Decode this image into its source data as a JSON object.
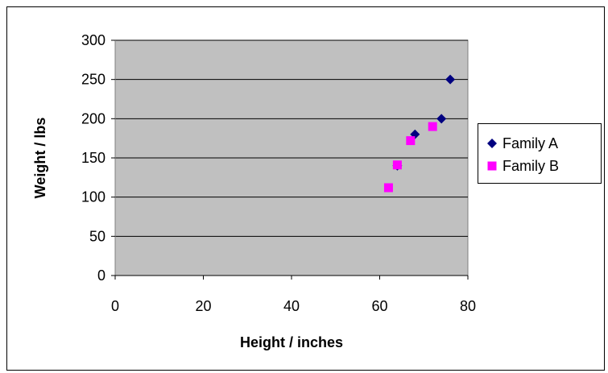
{
  "chart_data": {
    "type": "scatter",
    "xlabel": "Height / inches",
    "ylabel": "Weight / lbs",
    "xlim": [
      0,
      80
    ],
    "ylim": [
      0,
      300
    ],
    "x_ticks": [
      "0",
      "20",
      "40",
      "60",
      "80"
    ],
    "y_ticks": [
      "0",
      "50",
      "100",
      "150",
      "200",
      "250",
      "300"
    ],
    "grid": "horizontal",
    "legend_position": "right",
    "plot_background": "#c0c0c0",
    "series": [
      {
        "name": "Family A",
        "marker": "diamond",
        "color": "#000080",
        "points": [
          {
            "x": 64,
            "y": 140
          },
          {
            "x": 68,
            "y": 180
          },
          {
            "x": 74,
            "y": 200
          },
          {
            "x": 76,
            "y": 250
          }
        ]
      },
      {
        "name": "Family B",
        "marker": "square",
        "color": "#ff00ff",
        "points": [
          {
            "x": 62,
            "y": 112
          },
          {
            "x": 64,
            "y": 141
          },
          {
            "x": 67,
            "y": 172
          },
          {
            "x": 72,
            "y": 190
          }
        ]
      }
    ]
  }
}
